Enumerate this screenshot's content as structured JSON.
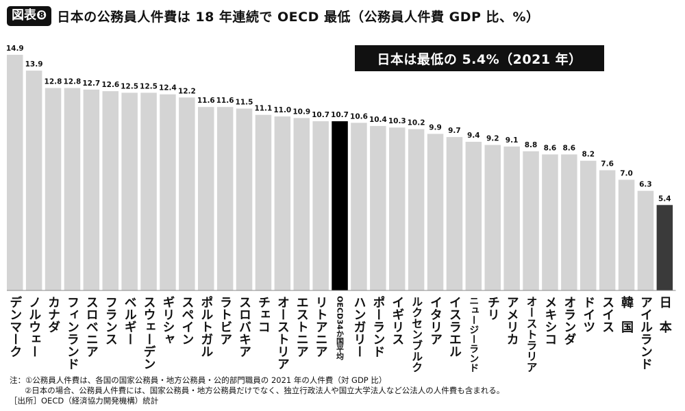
{
  "header": {
    "badge": "図表❽",
    "title": "日本の公務員人件費は 18 年連続で OECD 最低（公務員人件費 GDP 比、%）"
  },
  "annotation": "日本は最低の 5.4%（2021 年）",
  "notes": {
    "note1": "注：①公務員人件費は、各国の国家公務員・地方公務員・公的部門職員の 2021 年の人件費（対 GDP 比）",
    "note2": "②日本の場合、公務員人件費には、国家公務員・地方公務員だけでなく、独立行政法人や国立大学法人など公法人の人件費も含まれる。",
    "source": "［出所］OECD（経済協力開発機構）統計"
  },
  "colors": {
    "bar": "#d4d4d4",
    "highlight_oecd": "#000000",
    "highlight_japan": "#3a3a3a"
  },
  "chart_data": {
    "type": "bar",
    "title": "日本の公務員人件費は 18 年連続で OECD 最低（公務員人件費 GDP 比、%）",
    "ylim": [
      0,
      15
    ],
    "grid": false,
    "categories": [
      "デンマーク",
      "ノルウェー",
      "カナダ",
      "フィンランド",
      "スロベニア",
      "フランス",
      "ベルギー",
      "スウェーデン",
      "ギリシャ",
      "スペイン",
      "ポルトガル",
      "ラトビア",
      "スロバキア",
      "チェコ",
      "オーストリア",
      "エストニア",
      "リトアニア",
      "OECD34か国平均",
      "ハンガリー",
      "ポーランド",
      "イギリス",
      "ルクセンブルク",
      "イタリア",
      "イスラエル",
      "ニュージーランド",
      "チリ",
      "アメリカ",
      "オーストラリア",
      "メキシコ",
      "オランダ",
      "ドイツ",
      "スイス",
      "韓国",
      "アイルランド",
      "日本"
    ],
    "values": [
      14.9,
      13.9,
      12.8,
      12.8,
      12.7,
      12.6,
      12.5,
      12.5,
      12.4,
      12.2,
      11.6,
      11.6,
      11.5,
      11.1,
      11.0,
      10.9,
      10.7,
      10.7,
      10.6,
      10.4,
      10.3,
      10.2,
      9.9,
      9.7,
      9.4,
      9.2,
      9.1,
      8.8,
      8.6,
      8.6,
      8.2,
      7.6,
      7.0,
      6.3,
      5.4
    ],
    "value_labels": [
      "14.9",
      "13.9",
      "12.8",
      "12.8",
      "12.7",
      "12.6",
      "12.5",
      "12.5",
      "12.4",
      "12.2",
      "11.6",
      "11.6",
      "11.5",
      "11.1",
      "11.0",
      "10.9",
      "10.7",
      "10.7",
      "10.6",
      "10.4",
      "10.3",
      "10.2",
      "9.9",
      "9.7",
      "9.4",
      "9.2",
      "9.1",
      "8.8",
      "8.6",
      "8.6",
      "8.2",
      "7.6",
      "7.0",
      "6.3",
      "5.4"
    ],
    "tick_labels": [
      "デンマーク",
      "ノルウェー",
      "カナダ",
      "フィンランド",
      "スロベニア",
      "フランス",
      "ベルギー",
      "スウェーデン",
      "ギリシャ",
      "スペイン",
      "ポルトガル",
      "ラトビア",
      "スロバキア",
      "チェコ",
      "オーストリア",
      "エストニア",
      "リトアニア",
      "OECD34か国平均",
      "ハンガリー",
      "ポーランド",
      "イギリス",
      "ルクセンブルク",
      "イタリア",
      "イスラエル",
      "ニュージーランド",
      "チリ",
      "アメリカ",
      "オーストラリア",
      "メキシコ",
      "オランダ",
      "ドイツ",
      "スイス",
      "韓　国",
      "アイルランド",
      "日　本"
    ],
    "highlight": {
      "OECD34か国平均": "oecd",
      "日本": "japan"
    }
  }
}
